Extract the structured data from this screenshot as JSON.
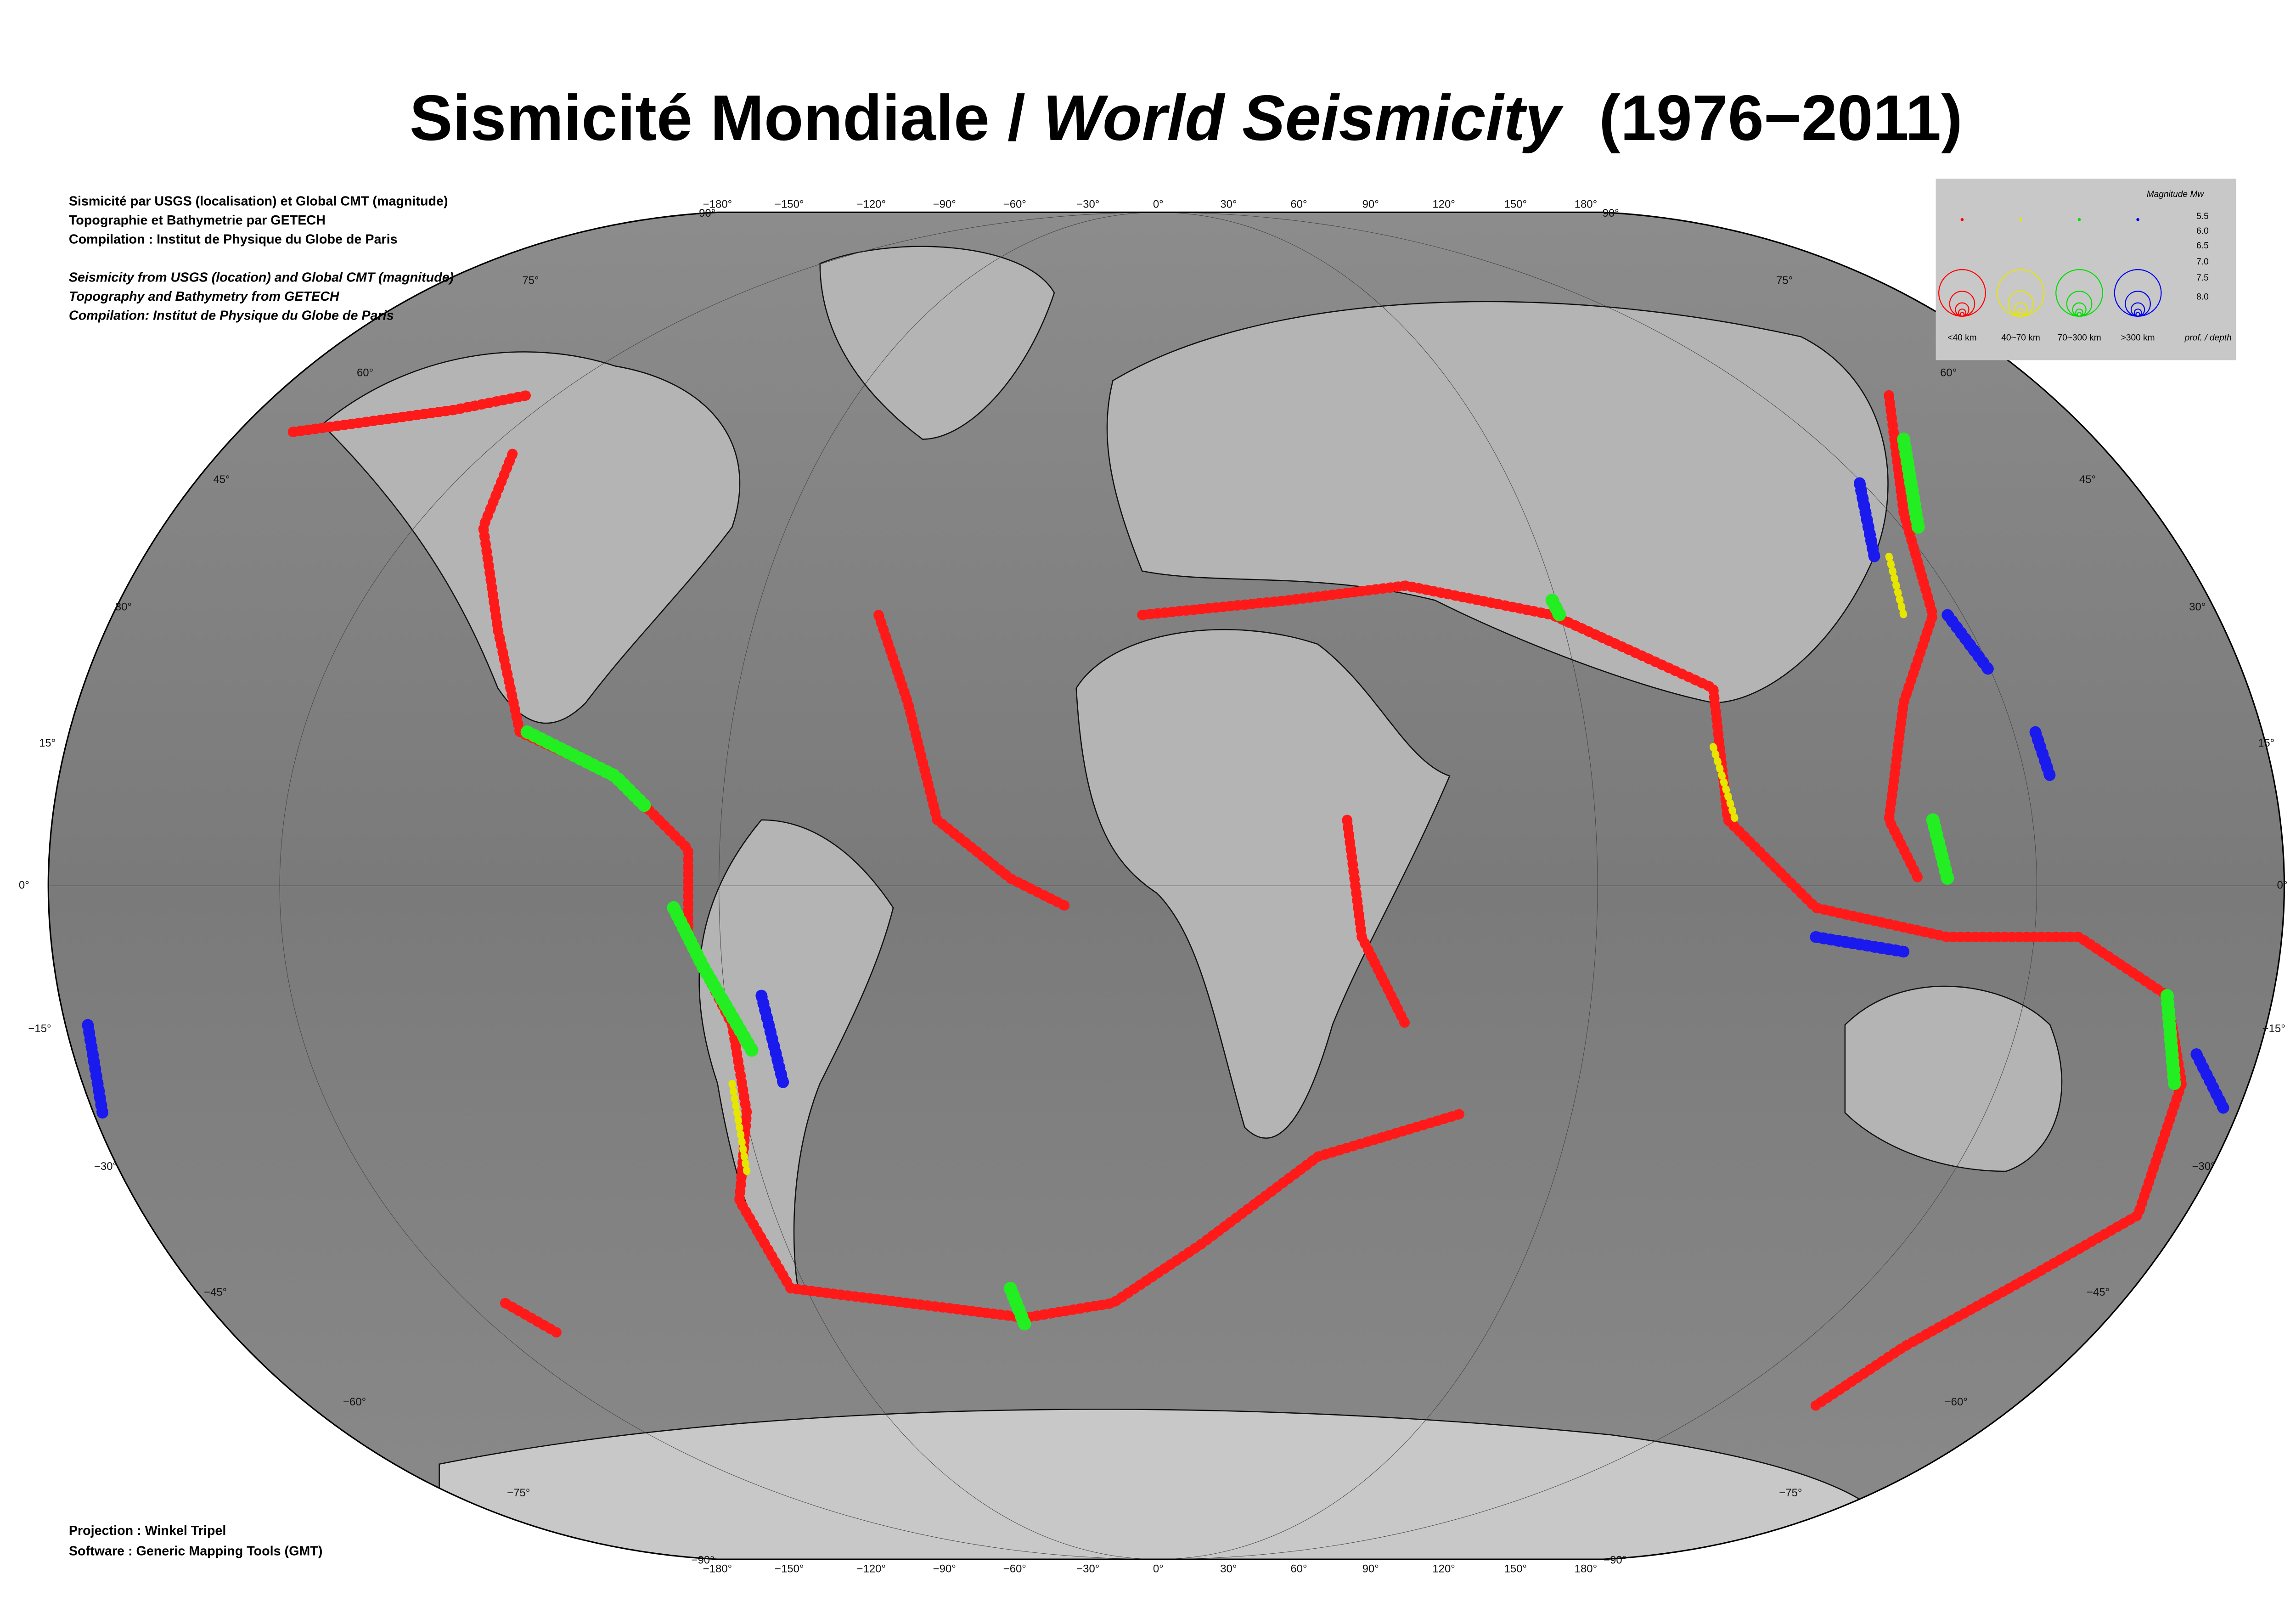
{
  "title": {
    "fr": "Sismicité Mondiale /",
    "en": "World Seismicity",
    "period": "(1976−2011)"
  },
  "credits_fr": [
    "Sismicité par USGS (localisation) et Global CMT (magnitude)",
    "Topographie et Bathymetrie par GETECH",
    "Compilation : Institut de Physique du Globe de Paris"
  ],
  "credits_en": [
    "Seismicity from USGS (location) and Global CMT (magnitude)",
    "Topography and Bathymetry from GETECH",
    "Compilation: Institut de Physique du Globe de Paris"
  ],
  "footer": [
    "Projection : Winkel Tripel",
    "Software : Generic Mapping Tools (GMT)"
  ],
  "graticule": {
    "lon_labels": [
      "−180°",
      "−150°",
      "−120°",
      "−90°",
      "−60°",
      "−30°",
      "0°",
      "30°",
      "60°",
      "90°",
      "120°",
      "150°",
      "180°"
    ],
    "lat_labels": [
      "75°",
      "60°",
      "45°",
      "30°",
      "15°",
      "0°",
      "−15°",
      "−30°",
      "−45°",
      "−60°",
      "−75°"
    ],
    "pole_north": "90°",
    "pole_south": "−90°"
  },
  "legend": {
    "title": "Magnitude Mw",
    "magnitudes": [
      5.5,
      {
        "value": 6,
        "label": "6.0"
      },
      6.5,
      {
        "value": 7,
        "label": "7.0"
      },
      7.5,
      {
        "value": 8,
        "label": "8.0"
      }
    ],
    "depth_classes": [
      {
        "name": "<40 km",
        "color": "#ff0000"
      },
      {
        "name": "40~70 km",
        "color": "#e6e600"
      },
      {
        "name": "70~300 km",
        "color": "#00dd00"
      },
      {
        "name": ">300 km",
        "color": "#0000ee"
      }
    ],
    "depth_label": "prof. / depth"
  }
}
